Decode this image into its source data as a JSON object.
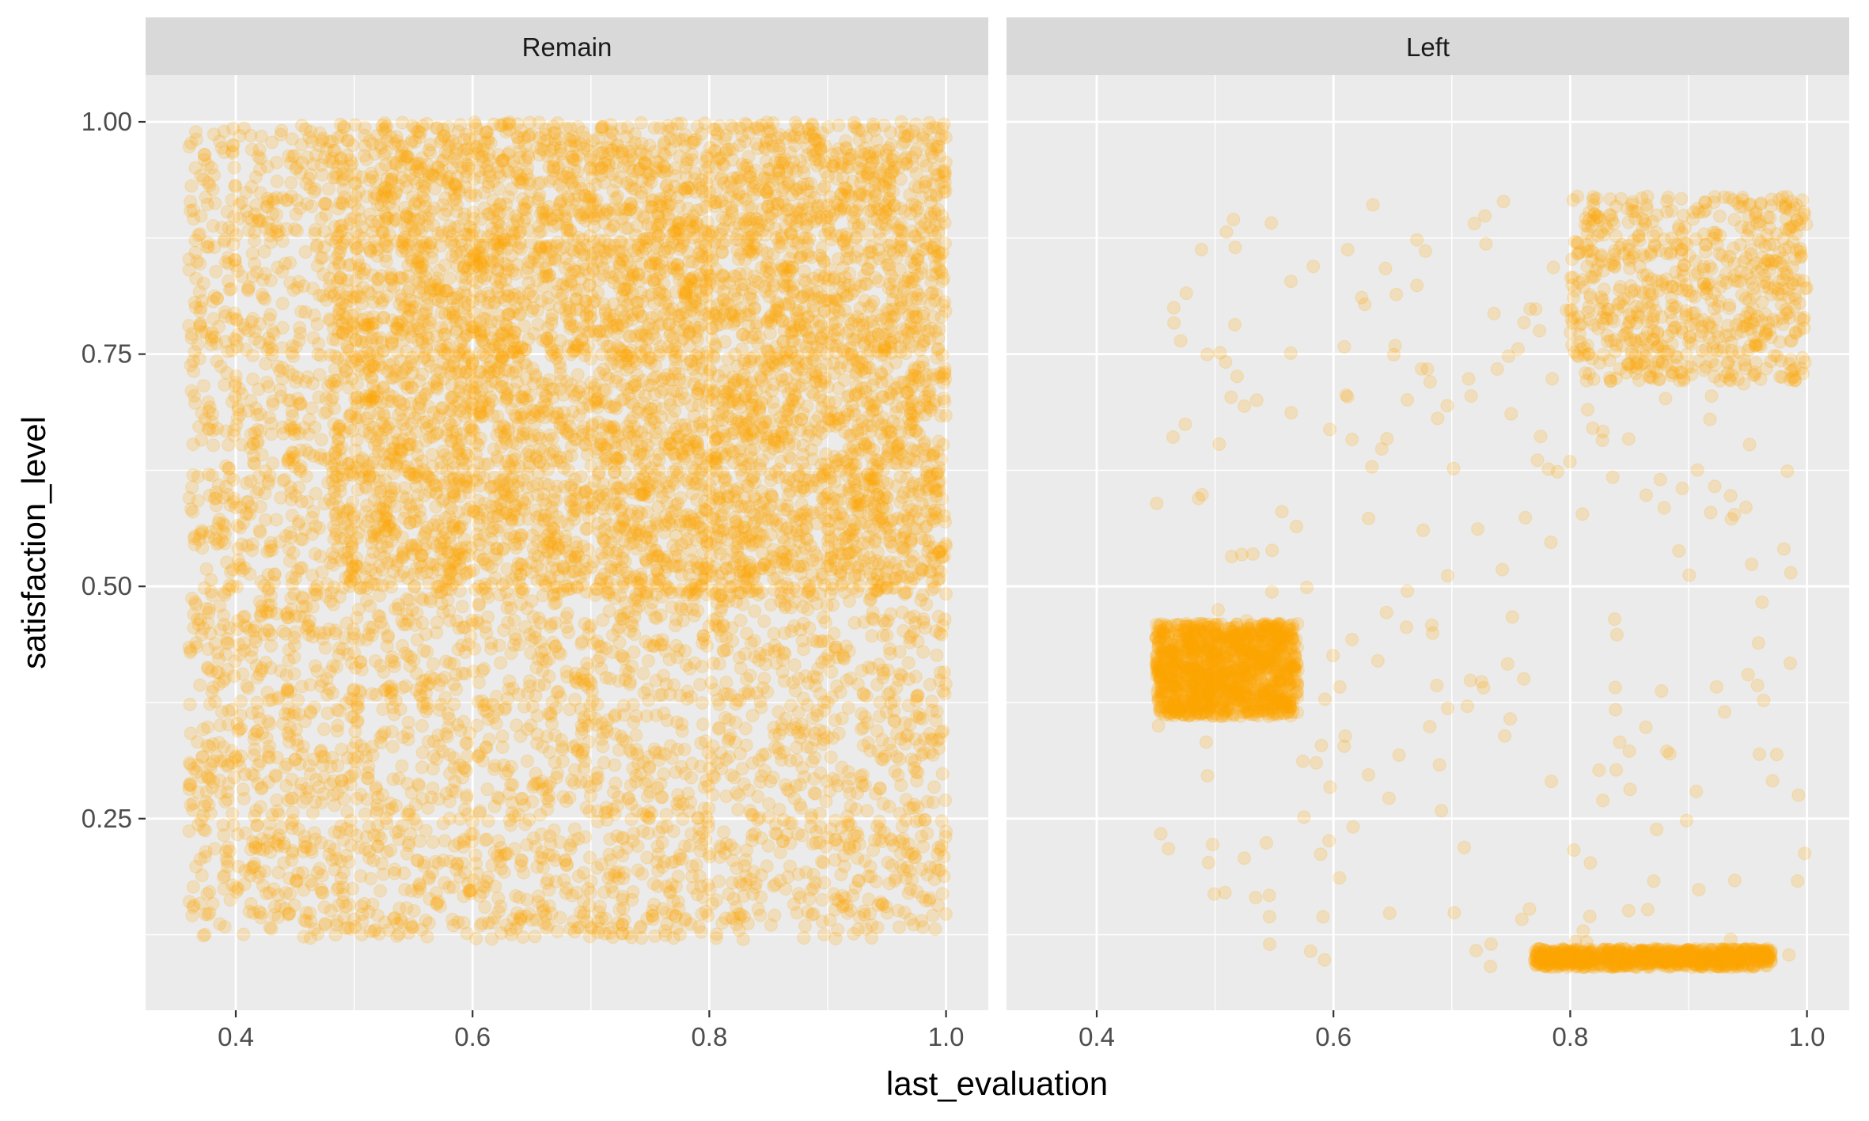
{
  "chart_data": {
    "type": "scatter",
    "xlabel": "last_evaluation",
    "ylabel": "satisfaction_level",
    "xlim": [
      0.36,
      1.0
    ],
    "ylim": [
      0.09,
      1.0
    ],
    "x_ticks": [
      {
        "value": 0.4,
        "label": "0.4"
      },
      {
        "value": 0.6,
        "label": "0.6"
      },
      {
        "value": 0.8,
        "label": "0.8"
      },
      {
        "value": 1.0,
        "label": "1.0"
      }
    ],
    "y_ticks": [
      {
        "value": 0.25,
        "label": "0.25"
      },
      {
        "value": 0.5,
        "label": "0.50"
      },
      {
        "value": 0.75,
        "label": "0.75"
      },
      {
        "value": 1.0,
        "label": "1.00"
      }
    ],
    "point_color": "#FFA500",
    "point_alpha": 0.2,
    "panel_background": "#EBEBEB",
    "strip_background": "#D9D9D9",
    "grid": true,
    "legend": "none",
    "facets": [
      {
        "label": "Remain",
        "clusters": [
          {
            "x_range": [
              0.48,
              1.0
            ],
            "y_range": [
              0.49,
              1.0
            ],
            "count": 5600
          },
          {
            "x_range": [
              0.36,
              1.0
            ],
            "y_range": [
              0.12,
              0.49
            ],
            "count": 2300
          },
          {
            "x_range": [
              0.36,
              0.48
            ],
            "y_range": [
              0.49,
              1.0
            ],
            "count": 600
          }
        ]
      },
      {
        "label": "Left",
        "clusters": [
          {
            "x_range": [
              0.45,
              0.57
            ],
            "y_range": [
              0.36,
              0.46
            ],
            "count": 1300
          },
          {
            "x_range": [
              0.77,
              0.97
            ],
            "y_range": [
              0.09,
              0.11
            ],
            "count": 800
          },
          {
            "x_range": [
              0.8,
              1.0
            ],
            "y_range": [
              0.72,
              0.92
            ],
            "count": 650
          },
          {
            "x_range": [
              0.45,
              1.0
            ],
            "y_range": [
              0.09,
              0.92
            ],
            "count": 260
          }
        ]
      }
    ]
  }
}
